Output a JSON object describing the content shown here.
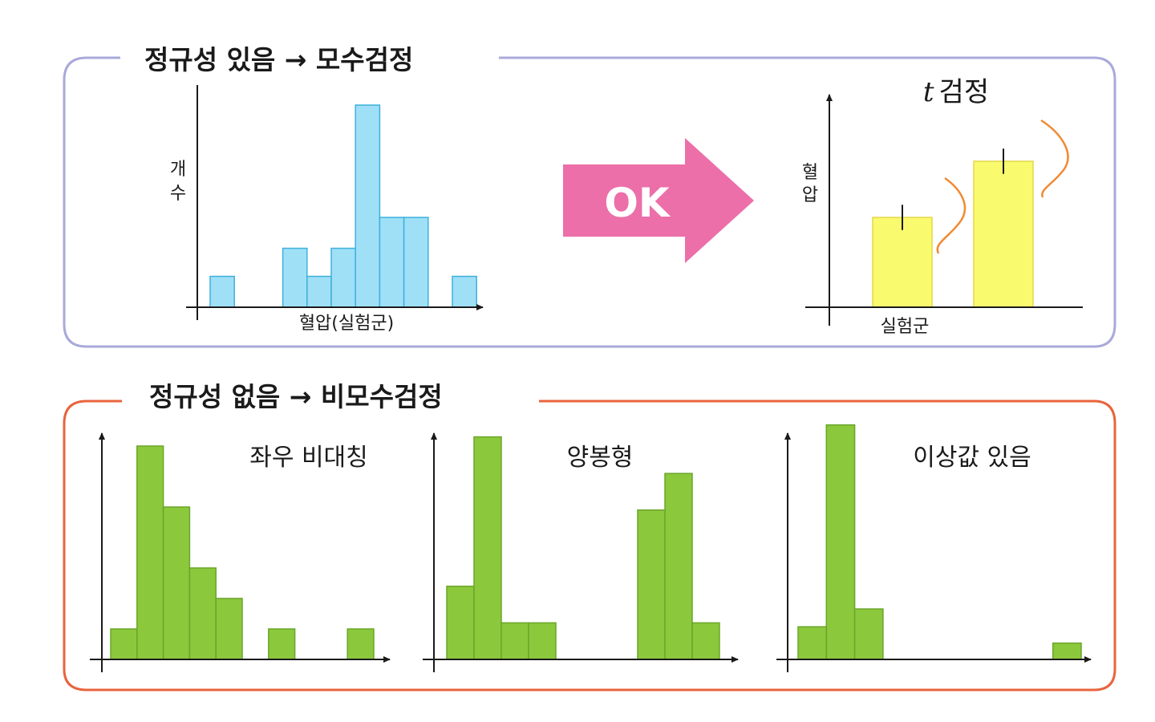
{
  "colors": {
    "top_frame": "#a9a9da",
    "bottom_frame": "#e8643c",
    "histogram_blue": "#9fe0f7",
    "histogram_blue_edge": "#3fb0dc",
    "histogram_green": "#8cc83c",
    "histogram_green_edge": "#6aa52a",
    "bar_yellow": "#fafa6e",
    "bar_yellow_edge": "#e2d84a",
    "arrow_pink": "#ec6fa9",
    "curve_orange": "#f08a32",
    "axis": "#1a1a1a",
    "text": "#1a1a1a"
  },
  "top_section": {
    "title": "정규성 있음 → 모수검정",
    "histogram": {
      "ylabel_line1": "개",
      "ylabel_line2": "수",
      "xlabel": "혈압(실험군)"
    },
    "arrow_label": "OK",
    "ttest": {
      "title_italic": "t",
      "title": "검정",
      "ylabel_line1": "혈",
      "ylabel_line2": "압",
      "xlabel": "실험군"
    }
  },
  "bottom_section": {
    "title": "정규성 없음 → 비모수검정",
    "panels": [
      {
        "label": "좌우 비대칭"
      },
      {
        "label": "양봉형"
      },
      {
        "label": "이상값 있음"
      }
    ]
  },
  "chart_data": [
    {
      "type": "bar",
      "chart": "normal-histogram",
      "values": [
        1.1,
        0,
        0,
        2.1,
        1.1,
        2.1,
        7.2,
        3.2,
        3.2,
        0,
        1.1
      ],
      "ylabel": "개수",
      "xlabel": "혈압(실험군)"
    },
    {
      "type": "bar",
      "chart": "t-test-bars",
      "values": [
        3.2,
        5.2
      ],
      "errors": [
        0.45,
        0.45
      ],
      "ylabel": "혈압",
      "xlabel": "실험군"
    },
    {
      "type": "bar",
      "chart": "skewed-histogram",
      "title": "좌우 비대칭",
      "values": [
        1.0,
        7.0,
        5.0,
        3.0,
        2.0,
        0,
        1.0,
        0,
        0,
        1.0
      ]
    },
    {
      "type": "bar",
      "chart": "bimodal-histogram",
      "title": "양봉형",
      "values": [
        2.4,
        7.3,
        1.2,
        1.2,
        0,
        0,
        0,
        4.9,
        6.1,
        1.2
      ]
    },
    {
      "type": "bar",
      "chart": "outlier-histogram",
      "title": "이상값 있음",
      "values": [
        1.1,
        7.9,
        1.7,
        0,
        0,
        0,
        0,
        0,
        0,
        0.55
      ]
    }
  ]
}
